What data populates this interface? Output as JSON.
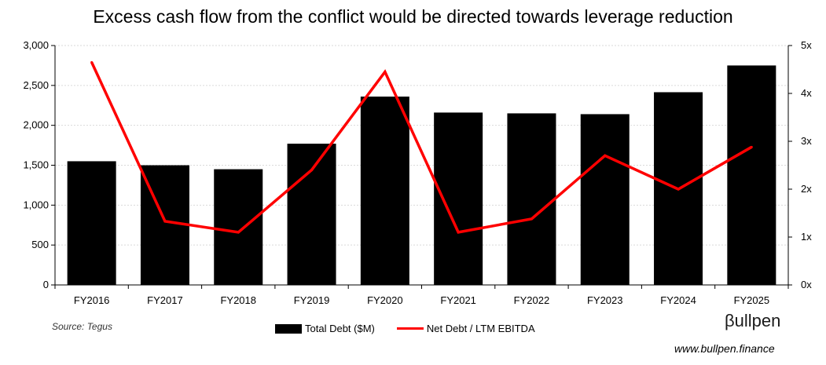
{
  "chart_data": {
    "type": "bar",
    "title": "Excess cash flow from the conflict would be directed towards leverage reduction",
    "categories": [
      "FY2016",
      "FY2017",
      "FY2018",
      "FY2019",
      "FY2020",
      "FY2021",
      "FY2022",
      "FY2023",
      "FY2024",
      "FY2025"
    ],
    "series": [
      {
        "name": "Total Debt ($M)",
        "type": "bar",
        "axis": "left",
        "color": "#000000",
        "values": [
          1550,
          1500,
          1450,
          1770,
          2360,
          2160,
          2150,
          2140,
          2415,
          2750
        ]
      },
      {
        "name": "Net Debt / LTM EBITDA",
        "type": "line",
        "axis": "right",
        "color": "#ff0000",
        "values": [
          4.65,
          1.33,
          1.1,
          2.4,
          4.45,
          1.1,
          1.38,
          2.7,
          2.0,
          2.88
        ]
      }
    ],
    "ylim_left": [
      0,
      3000
    ],
    "yticks_left": [
      "0",
      "500",
      "1,000",
      "1,500",
      "2,000",
      "2,500",
      "3,000"
    ],
    "ylim_right": [
      0,
      5
    ],
    "yticks_right": [
      "0x",
      "1x",
      "2x",
      "3x",
      "4x",
      "5x"
    ],
    "grid": true,
    "legend_position": "bottom"
  },
  "source_note": "Source: Tegus",
  "brand": {
    "name": "βullpen",
    "url": "www.bullpen.finance"
  }
}
